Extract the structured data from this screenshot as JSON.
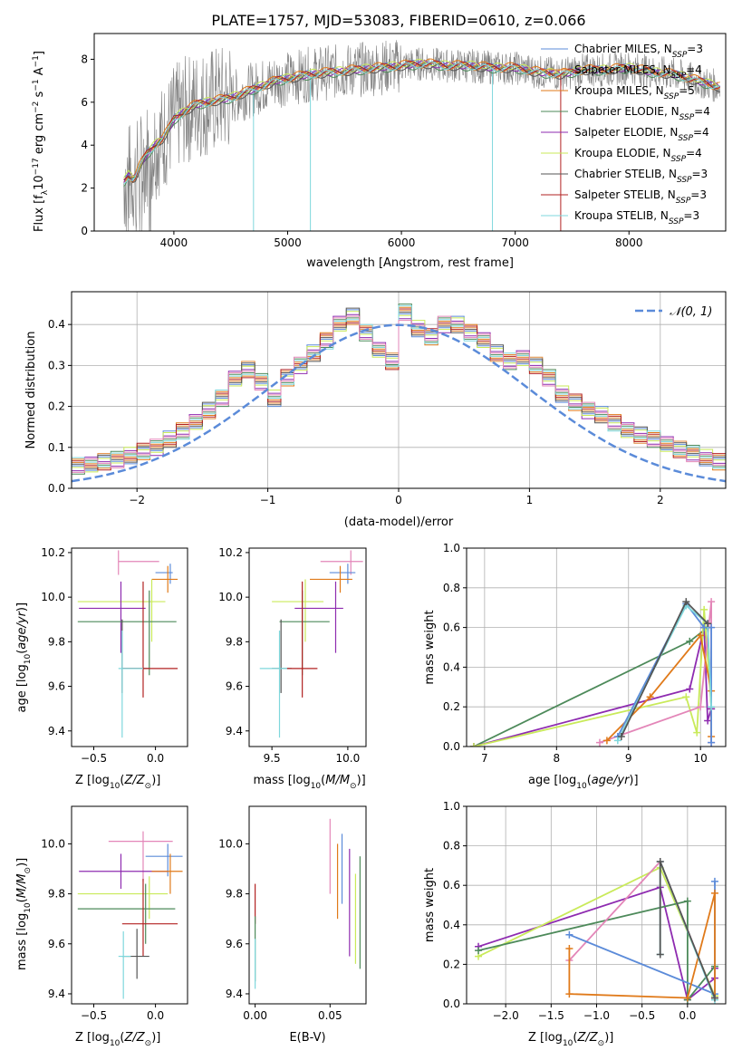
{
  "title": "PLATE=1757, MJD=53083, FIBERID=0610, z=0.066",
  "colors": {
    "chabrier_miles": "#5b8bd9",
    "salpeter_miles": "#e08a3c",
    "kroupa_miles": "#e07a1a",
    "chabrier_elodie": "#4d8a5a",
    "salpeter_elodie": "#8e2bb0",
    "kroupa_elodie": "#c9ea5a",
    "chabrier_stelib": "#555555",
    "salpeter_stelib": "#b22222",
    "kroupa_stelib": "#7fd7dc",
    "pink": "#e386b8",
    "data": "#808080",
    "gaussian": "#5b8bd9",
    "grid": "#b0b0b0"
  },
  "chart_data": [
    {
      "id": "spectrum",
      "type": "line",
      "xlabel": "wavelength [Angstrom, rest frame]",
      "ylabel": "Flux [f",
      "xlim": [
        3300,
        8850
      ],
      "ylim": [
        0,
        9.2
      ],
      "xticks": [
        4000,
        5000,
        6000,
        7000,
        8000
      ],
      "yticks": [
        0,
        2,
        4,
        6,
        8
      ],
      "grid": false,
      "legend": "right",
      "series": [
        {
          "name": "Chabrier MILES",
          "nssp": "3",
          "color": "#5b8bd9"
        },
        {
          "name": "Salpeter MILES",
          "nssp": "4",
          "color": "#e08a3c"
        },
        {
          "name": "Kroupa MILES",
          "nssp": "5",
          "color": "#e07a1a"
        },
        {
          "name": "Chabrier ELODIE",
          "nssp": "4",
          "color": "#4d8a5a"
        },
        {
          "name": "Salpeter ELODIE",
          "nssp": "4",
          "color": "#8e2bb0"
        },
        {
          "name": "Kroupa ELODIE",
          "nssp": "4",
          "color": "#c9ea5a"
        },
        {
          "name": "Chabrier STELIB",
          "nssp": "3",
          "color": "#555555"
        },
        {
          "name": "Salpeter STELIB",
          "nssp": "3",
          "color": "#b22222"
        },
        {
          "name": "Kroupa STELIB",
          "nssp": "3",
          "color": "#7fd7dc"
        }
      ],
      "model_x": [
        3560,
        3600,
        3650,
        3700,
        3750,
        3800,
        3850,
        3900,
        3950,
        4000,
        4100,
        4200,
        4300,
        4400,
        4500,
        4600,
        4700,
        4800,
        4900,
        5000,
        5200,
        5400,
        5600,
        5800,
        6000,
        6200,
        6400,
        6600,
        6800,
        7000,
        7200,
        7400,
        7600,
        7800,
        8000,
        8200,
        8400,
        8600,
        8800
      ],
      "model_y": [
        2.3,
        2.6,
        2.4,
        3.0,
        3.5,
        3.8,
        4.1,
        4.3,
        4.7,
        5.2,
        5.6,
        5.9,
        6.0,
        6.1,
        6.2,
        6.4,
        6.6,
        6.8,
        7.0,
        7.1,
        7.3,
        7.4,
        7.5,
        7.6,
        7.7,
        7.8,
        7.7,
        7.7,
        7.6,
        7.6,
        7.4,
        7.3,
        7.5,
        7.5,
        7.6,
        7.4,
        7.3,
        7.0,
        6.7
      ]
    },
    {
      "id": "residuals",
      "type": "histogram",
      "xlabel": "(data-model)/error",
      "ylabel": "Normed distribution",
      "xlim": [
        -2.5,
        2.5
      ],
      "ylim": [
        0,
        0.48
      ],
      "xticks": [
        -2,
        -1,
        0,
        1,
        2
      ],
      "yticks": [
        0.0,
        0.1,
        0.2,
        0.3,
        0.4
      ],
      "grid": true,
      "legend": "top-right",
      "gaussian_label": "𝒩(0, 1)",
      "bin_width": 0.1,
      "hist_base": [
        0.02,
        0.025,
        0.03,
        0.035,
        0.04,
        0.045,
        0.05,
        0.055,
        0.06,
        0.065,
        0.07,
        0.08,
        0.09,
        0.1,
        0.12,
        0.14,
        0.16,
        0.19,
        0.22,
        0.27,
        0.29,
        0.26,
        0.22,
        0.27,
        0.3,
        0.33,
        0.36,
        0.4,
        0.42,
        0.38,
        0.34,
        0.31,
        0.43,
        0.39,
        0.37,
        0.4,
        0.4,
        0.38,
        0.36,
        0.33,
        0.31,
        0.32,
        0.3,
        0.27,
        0.23,
        0.21,
        0.19,
        0.18,
        0.16,
        0.14,
        0.13,
        0.12,
        0.11,
        0.095,
        0.085,
        0.075,
        0.065,
        0.055,
        0.045,
        0.04,
        0.03,
        0.03,
        0.025,
        0.025
      ]
    },
    {
      "id": "age-vs-Z",
      "type": "errorbar",
      "xlabel": "Z [log",
      "ylabel": "age  [log",
      "xlim": [
        -0.68,
        0.26
      ],
      "ylim": [
        9.33,
        10.22
      ],
      "xticks": [
        -0.5,
        0.0
      ],
      "yticks": [
        9.4,
        9.6,
        9.8,
        10.0,
        10.2
      ]
    },
    {
      "id": "age-vs-mass",
      "type": "errorbar",
      "xlabel": "mass [log",
      "ylabel": "",
      "xlim": [
        9.35,
        10.12
      ],
      "ylim": [
        9.33,
        10.22
      ],
      "xticks": [
        9.5,
        10.0
      ],
      "yticks": [
        9.4,
        9.6,
        9.8,
        10.0,
        10.2
      ]
    },
    {
      "id": "weight-vs-age",
      "type": "line",
      "xlabel": "age  [log",
      "ylabel": "mass weight",
      "xlim": [
        6.75,
        10.35
      ],
      "ylim": [
        0,
        1.0
      ],
      "xticks": [
        7,
        8,
        9,
        10
      ],
      "yticks": [
        0.0,
        0.2,
        0.4,
        0.6,
        0.8,
        1.0
      ],
      "grid": true
    },
    {
      "id": "mass-vs-Z",
      "type": "errorbar",
      "xlabel": "Z [log",
      "ylabel": "mass [log",
      "xlim": [
        -0.68,
        0.26
      ],
      "ylim": [
        9.36,
        10.15
      ],
      "xticks": [
        -0.5,
        0.0
      ],
      "yticks": [
        9.4,
        9.6,
        9.8,
        10.0
      ]
    },
    {
      "id": "mass-vs-ebv",
      "type": "errorbar",
      "xlabel": "E(B-V)",
      "ylabel": "",
      "xlim": [
        -0.004,
        0.074
      ],
      "ylim": [
        9.36,
        10.15
      ],
      "xticks": [
        0.0,
        0.05
      ],
      "yticks": [
        9.4,
        9.6,
        9.8,
        10.0
      ]
    },
    {
      "id": "weight-vs-Z",
      "type": "line",
      "xlabel": "Z [log",
      "ylabel": "mass weight",
      "xlim": [
        -2.43,
        0.42
      ],
      "ylim": [
        0,
        1.0
      ],
      "xticks": [
        -2.0,
        -1.5,
        -1.0,
        -0.5,
        0.0
      ],
      "yticks": [
        0.0,
        0.2,
        0.4,
        0.6,
        0.8,
        1.0
      ],
      "grid": true
    }
  ],
  "errorbars": {
    "ageZ": [
      {
        "c": "pink",
        "x": -0.3,
        "xe": [
          -0.3,
          0.03
        ],
        "y": 10.16,
        "ye": [
          10.1,
          10.21
        ]
      },
      {
        "c": "chabrier_miles",
        "x": 0.12,
        "xe": [
          0.0,
          0.14
        ],
        "y": 10.11,
        "ye": [
          10.06,
          10.15
        ]
      },
      {
        "c": "kroupa_miles",
        "x": 0.1,
        "xe": [
          -0.03,
          0.18
        ],
        "y": 10.08,
        "ye": [
          10.02,
          10.14
        ]
      },
      {
        "c": "kroupa_elodie",
        "x": -0.03,
        "xe": [
          -0.63,
          0.08
        ],
        "y": 9.98,
        "ye": [
          9.8,
          10.08
        ]
      },
      {
        "c": "salpeter_elodie",
        "x": -0.28,
        "xe": [
          -0.62,
          -0.08
        ],
        "y": 9.95,
        "ye": [
          9.75,
          10.07
        ]
      },
      {
        "c": "chabrier_elodie",
        "x": -0.05,
        "xe": [
          -0.63,
          0.17
        ],
        "y": 9.89,
        "ye": [
          9.65,
          10.03
        ]
      },
      {
        "c": "chabrier_stelib",
        "x": -0.27,
        "xe": [
          -0.27,
          -0.05
        ],
        "y": 9.68,
        "ye": [
          9.57,
          9.9
        ]
      },
      {
        "c": "salpeter_stelib",
        "x": -0.1,
        "xe": [
          -0.27,
          0.18
        ],
        "y": 9.68,
        "ye": [
          9.55,
          10.07
        ]
      },
      {
        "c": "kroupa_stelib",
        "x": -0.27,
        "xe": [
          -0.3,
          -0.1
        ],
        "y": 9.68,
        "ye": [
          9.37,
          9.85
        ]
      }
    ],
    "ageMass": [
      {
        "c": "pink",
        "x": 10.02,
        "xe": [
          9.82,
          10.1
        ],
        "y": 10.16,
        "ye": [
          10.1,
          10.21
        ]
      },
      {
        "c": "chabrier_miles",
        "x": 10.0,
        "xe": [
          9.88,
          10.05
        ],
        "y": 10.11,
        "ye": [
          10.06,
          10.15
        ]
      },
      {
        "c": "kroupa_miles",
        "x": 9.95,
        "xe": [
          9.75,
          10.03
        ],
        "y": 10.08,
        "ye": [
          10.02,
          10.14
        ]
      },
      {
        "c": "kroupa_elodie",
        "x": 9.72,
        "xe": [
          9.5,
          9.84
        ],
        "y": 9.98,
        "ye": [
          9.8,
          10.08
        ]
      },
      {
        "c": "salpeter_elodie",
        "x": 9.92,
        "xe": [
          9.65,
          9.97
        ],
        "y": 9.95,
        "ye": [
          9.75,
          10.07
        ]
      },
      {
        "c": "chabrier_elodie",
        "x": 9.7,
        "xe": [
          9.55,
          9.88
        ],
        "y": 9.89,
        "ye": [
          9.65,
          10.03
        ]
      },
      {
        "c": "chabrier_stelib",
        "x": 9.56,
        "xe": [
          9.5,
          9.63
        ],
        "y": 9.68,
        "ye": [
          9.57,
          9.9
        ]
      },
      {
        "c": "salpeter_stelib",
        "x": 9.7,
        "xe": [
          9.6,
          9.8
        ],
        "y": 9.68,
        "ye": [
          9.55,
          10.07
        ]
      },
      {
        "c": "kroupa_stelib",
        "x": 9.55,
        "xe": [
          9.42,
          9.6
        ],
        "y": 9.68,
        "ye": [
          9.37,
          9.85
        ]
      }
    ],
    "massZ": [
      {
        "c": "pink",
        "x": -0.1,
        "xe": [
          -0.38,
          0.14
        ],
        "y": 10.01,
        "ye": [
          9.85,
          10.05
        ]
      },
      {
        "c": "chabrier_miles",
        "x": 0.1,
        "xe": [
          -0.08,
          0.22
        ],
        "y": 9.95,
        "ye": [
          9.87,
          10.0
        ]
      },
      {
        "c": "salpeter_elodie",
        "x": -0.28,
        "xe": [
          -0.62,
          0.1
        ],
        "y": 9.89,
        "ye": [
          9.82,
          9.96
        ]
      },
      {
        "c": "kroupa_miles",
        "x": 0.12,
        "xe": [
          -0.03,
          0.22
        ],
        "y": 9.89,
        "ye": [
          9.8,
          9.96
        ]
      },
      {
        "c": "kroupa_elodie",
        "x": -0.05,
        "xe": [
          -0.63,
          0.1
        ],
        "y": 9.8,
        "ye": [
          9.7,
          9.87
        ]
      },
      {
        "c": "chabrier_elodie",
        "x": -0.08,
        "xe": [
          -0.63,
          0.16
        ],
        "y": 9.74,
        "ye": [
          9.6,
          9.84
        ]
      },
      {
        "c": "salpeter_stelib",
        "x": -0.1,
        "xe": [
          -0.27,
          0.18
        ],
        "y": 9.68,
        "ye": [
          9.55,
          9.86
        ]
      },
      {
        "c": "chabrier_stelib",
        "x": -0.15,
        "xe": [
          -0.27,
          -0.05
        ],
        "y": 9.55,
        "ye": [
          9.46,
          9.66
        ]
      },
      {
        "c": "kroupa_stelib",
        "x": -0.26,
        "xe": [
          -0.3,
          -0.2
        ],
        "y": 9.55,
        "ye": [
          9.38,
          9.65
        ]
      }
    ],
    "massEbv": [
      {
        "c": "salpeter_stelib",
        "x": 0.0,
        "y": 9.76,
        "ye": [
          9.68,
          9.84
        ]
      },
      {
        "c": "chabrier_elodie",
        "x": 0.0,
        "y": 9.58,
        "ye": [
          9.45,
          9.71
        ]
      },
      {
        "c": "kroupa_stelib",
        "x": 0.0,
        "y": 9.52,
        "ye": [
          9.42,
          9.62
        ]
      },
      {
        "c": "pink",
        "x": 0.05,
        "y": 9.95,
        "ye": [
          9.8,
          10.1
        ]
      },
      {
        "c": "kroupa_miles",
        "x": 0.055,
        "y": 9.85,
        "ye": [
          9.7,
          10.0
        ]
      },
      {
        "c": "chabrier_miles",
        "x": 0.058,
        "y": 9.89,
        "ye": [
          9.76,
          10.04
        ]
      },
      {
        "c": "salpeter_elodie",
        "x": 0.063,
        "y": 9.76,
        "ye": [
          9.55,
          9.98
        ]
      },
      {
        "c": "kroupa_elodie",
        "x": 0.067,
        "y": 9.68,
        "ye": [
          9.52,
          9.88
        ]
      },
      {
        "c": "chabrier_elodie",
        "x": 0.07,
        "y": 9.72,
        "ye": [
          9.5,
          9.95
        ]
      }
    ]
  },
  "weights": {
    "age": [
      {
        "c": "chabrier_elodie",
        "pts": [
          [
            6.85,
            0.0
          ],
          [
            9.85,
            0.53
          ],
          [
            10.1,
            0.6
          ],
          [
            10.15,
            0.19
          ]
        ]
      },
      {
        "c": "salpeter_elodie",
        "pts": [
          [
            6.85,
            0.0
          ],
          [
            9.85,
            0.29
          ],
          [
            10.05,
            0.6
          ],
          [
            10.1,
            0.13
          ],
          [
            10.15,
            0.19
          ]
        ]
      },
      {
        "c": "kroupa_elodie",
        "pts": [
          [
            6.85,
            0.0
          ],
          [
            9.8,
            0.25
          ],
          [
            9.95,
            0.07
          ],
          [
            10.05,
            0.69
          ],
          [
            10.15,
            0.2
          ]
        ]
      },
      {
        "c": "pink",
        "pts": [
          [
            8.6,
            0.02
          ],
          [
            10.0,
            0.2
          ],
          [
            10.15,
            0.73
          ],
          [
            10.15,
            0.02
          ]
        ]
      },
      {
        "c": "kroupa_miles",
        "pts": [
          [
            8.7,
            0.03
          ],
          [
            9.3,
            0.25
          ],
          [
            10.0,
            0.56
          ],
          [
            10.15,
            0.28
          ],
          [
            10.15,
            0.05
          ]
        ]
      },
      {
        "c": "chabrier_miles",
        "pts": [
          [
            8.85,
            0.05
          ],
          [
            9.8,
            0.72
          ],
          [
            10.05,
            0.6
          ],
          [
            10.15,
            0.6
          ],
          [
            10.15,
            0.02
          ]
        ]
      },
      {
        "c": "kroupa_stelib",
        "pts": [
          [
            8.85,
            0.03
          ],
          [
            9.8,
            0.71
          ],
          [
            10.1,
            0.62
          ],
          [
            10.15,
            0.2
          ]
        ]
      },
      {
        "c": "chabrier_stelib",
        "pts": [
          [
            8.9,
            0.05
          ],
          [
            9.8,
            0.73
          ],
          [
            10.1,
            0.62
          ]
        ]
      }
    ],
    "Z": [
      {
        "c": "salpeter_elodie",
        "pts": [
          [
            -2.3,
            0.29
          ],
          [
            -0.3,
            0.59
          ],
          [
            0.0,
            0.02
          ],
          [
            0.3,
            0.13
          ],
          [
            0.3,
            0.18
          ]
        ]
      },
      {
        "c": "kroupa_elodie",
        "pts": [
          [
            -2.3,
            0.24
          ],
          [
            -0.3,
            0.69
          ],
          [
            0.3,
            0.04
          ]
        ]
      },
      {
        "c": "chabrier_elodie",
        "pts": [
          [
            -2.3,
            0.27
          ],
          [
            0.0,
            0.52
          ],
          [
            0.0,
            0.02
          ],
          [
            0.3,
            0.19
          ]
        ]
      },
      {
        "c": "pink",
        "pts": [
          [
            -1.3,
            0.22
          ],
          [
            -0.3,
            0.72
          ],
          [
            0.3,
            0.03
          ]
        ]
      },
      {
        "c": "chabrier_miles",
        "pts": [
          [
            -1.3,
            0.35
          ],
          [
            0.3,
            0.05
          ],
          [
            0.3,
            0.62
          ]
        ]
      },
      {
        "c": "kroupa_miles",
        "pts": [
          [
            -1.3,
            0.28
          ],
          [
            -1.3,
            0.05
          ],
          [
            0.0,
            0.03
          ],
          [
            0.3,
            0.56
          ],
          [
            0.3,
            0.03
          ]
        ]
      },
      {
        "c": "kroupa_stelib",
        "pts": [
          [
            -0.3,
            0.25
          ],
          [
            -0.3,
            0.72
          ],
          [
            0.3,
            0.02
          ]
        ]
      },
      {
        "c": "chabrier_stelib",
        "pts": [
          [
            -0.3,
            0.25
          ],
          [
            -0.3,
            0.72
          ],
          [
            0.3,
            0.03
          ]
        ]
      }
    ]
  }
}
